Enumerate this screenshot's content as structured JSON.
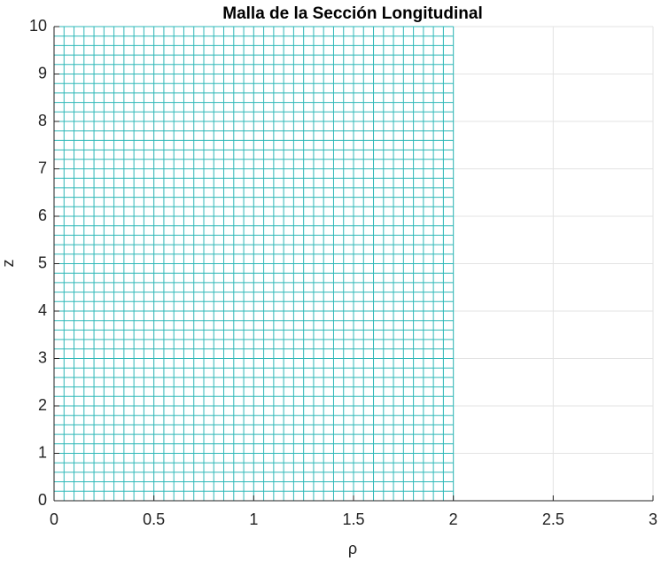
{
  "chart_data": {
    "type": "mesh",
    "title": "Malla de la Sección Longitudinal",
    "xlabel": "ρ",
    "ylabel": "z",
    "color": "#2fb8b8",
    "x": [
      0,
      0.05,
      0.1,
      0.15,
      0.2,
      0.25,
      0.3,
      0.35,
      0.4,
      0.45,
      0.5,
      0.55,
      0.6,
      0.65,
      0.7,
      0.75,
      0.8,
      0.85,
      0.9,
      0.95,
      1,
      1.05,
      1.1,
      1.15,
      1.2,
      1.25,
      1.3,
      1.35,
      1.4,
      1.45,
      1.5,
      1.55,
      1.6,
      1.65,
      1.7,
      1.75,
      1.8,
      1.85,
      1.9,
      1.95,
      2
    ],
    "z": [
      0,
      0.2,
      0.4,
      0.6,
      0.8,
      1,
      1.2,
      1.4,
      1.6,
      1.8,
      2,
      2.2,
      2.4,
      2.6,
      2.8,
      3,
      3.2,
      3.4,
      3.6,
      3.8,
      4,
      4.2,
      4.4,
      4.6,
      4.8,
      5,
      5.2,
      5.4,
      5.6,
      5.8,
      6,
      6.2,
      6.4,
      6.6,
      6.8,
      7,
      7.2,
      7.4,
      7.6,
      7.8,
      8,
      8.2,
      8.4,
      8.6,
      8.8,
      9,
      9.2,
      9.4,
      9.6,
      9.8,
      10
    ],
    "xlim": [
      0,
      3
    ],
    "xticks": [
      0,
      0.5,
      1,
      1.5,
      2,
      2.5,
      3
    ],
    "ylim": [
      0,
      10
    ],
    "yticks": [
      0,
      1,
      2,
      3,
      4,
      5,
      6,
      7,
      8,
      9,
      10
    ],
    "grid": true
  }
}
